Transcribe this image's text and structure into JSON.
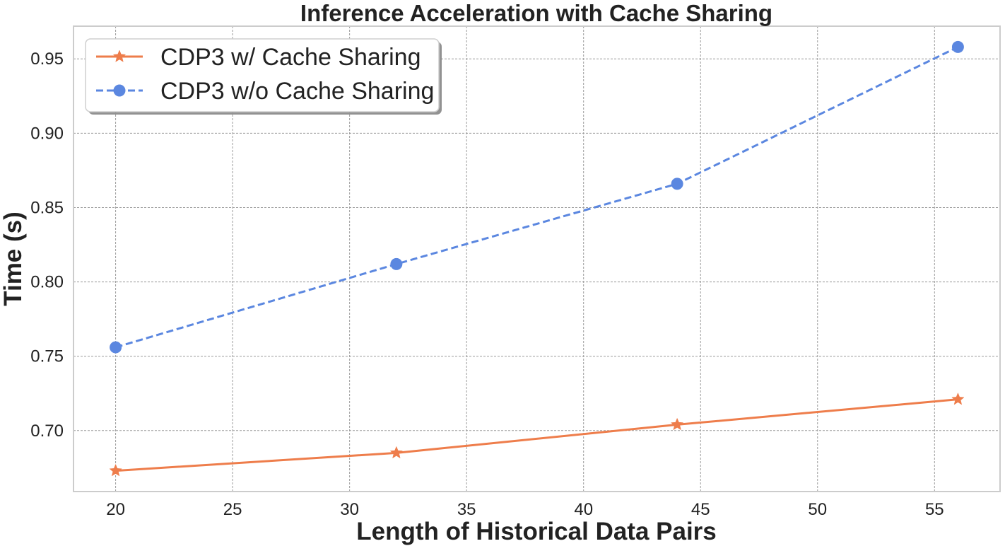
{
  "chart_data": {
    "type": "line",
    "title": "Inference Acceleration with Cache Sharing",
    "xlabel": "Length of Historical Data Pairs",
    "ylabel": "Time (s)",
    "xlim": [
      18.2,
      57.8
    ],
    "ylim": [
      0.659,
      0.972
    ],
    "xticks": [
      20,
      25,
      30,
      35,
      40,
      45,
      50,
      55
    ],
    "yticks": [
      0.7,
      0.75,
      0.8,
      0.85,
      0.9,
      0.95
    ],
    "xtick_labels": [
      "20",
      "25",
      "30",
      "35",
      "40",
      "45",
      "50",
      "55"
    ],
    "ytick_labels": [
      "0.70",
      "0.75",
      "0.80",
      "0.85",
      "0.90",
      "0.95"
    ],
    "grid": true,
    "legend_position": "top-left",
    "x": [
      20,
      32,
      44,
      56
    ],
    "series": [
      {
        "name": "CDP3 w/ Cache Sharing",
        "values": [
          0.673,
          0.685,
          0.704,
          0.721
        ],
        "color": "#ee7d4b",
        "marker": "star",
        "line_style": "solid"
      },
      {
        "name": "CDP3 w/o Cache Sharing",
        "values": [
          0.756,
          0.812,
          0.866,
          0.958
        ],
        "color": "#5b87e0",
        "marker": "circle",
        "line_style": "dashed"
      }
    ]
  }
}
